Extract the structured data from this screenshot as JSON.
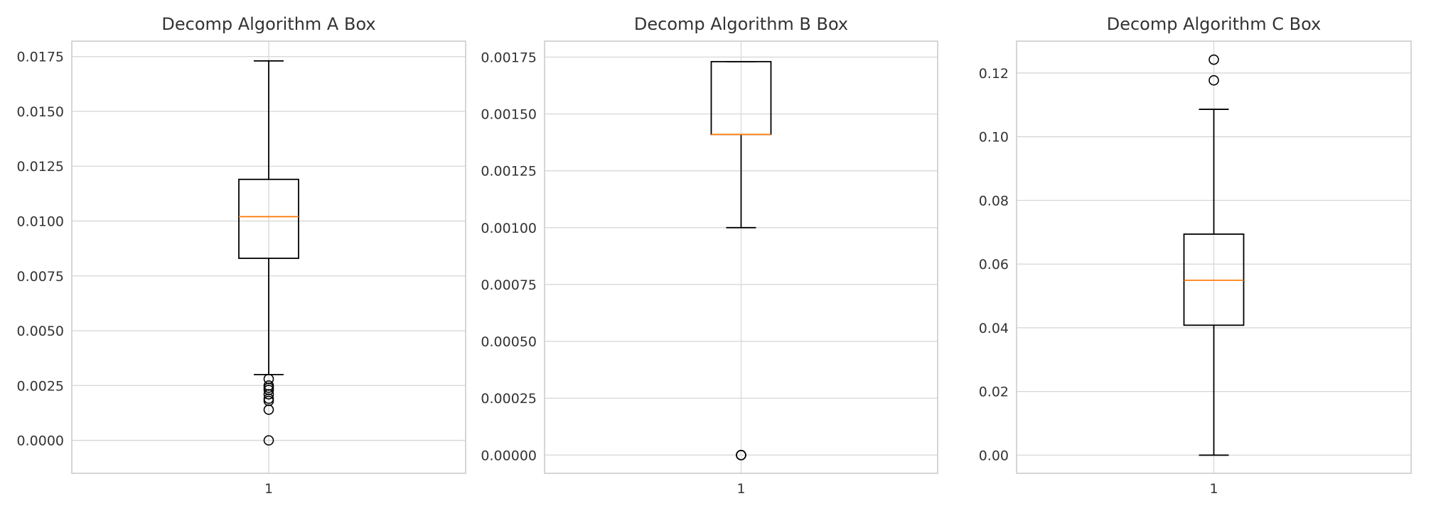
{
  "chart_data": [
    {
      "type": "box",
      "title": "Decomp Algorithm A Box",
      "xlabel": "",
      "ylabel": "",
      "categories": [
        "1"
      ],
      "ylim": [
        -0.0015,
        0.0182
      ],
      "yticks": [
        "0.0000",
        "0.0025",
        "0.0050",
        "0.0075",
        "0.0100",
        "0.0125",
        "0.0150",
        "0.0175"
      ],
      "grid": true,
      "box": {
        "whislo": 0.003,
        "q1": 0.0083,
        "median": 0.0102,
        "q3": 0.0119,
        "whishi": 0.0173,
        "fliers": [
          0.0028,
          0.0025,
          0.0024,
          0.0023,
          0.0021,
          0.0019,
          0.0018,
          0.0014,
          0.0
        ]
      }
    },
    {
      "type": "box",
      "title": "Decomp Algorithm B Box",
      "xlabel": "",
      "ylabel": "",
      "categories": [
        "1"
      ],
      "ylim": [
        -8e-05,
        0.00182
      ],
      "yticks": [
        "0.00000",
        "0.00025",
        "0.00050",
        "0.00075",
        "0.00100",
        "0.00125",
        "0.00150",
        "0.00175"
      ],
      "grid": true,
      "box": {
        "whislo": 0.001,
        "q1": 0.00141,
        "median": 0.00141,
        "q3": 0.00173,
        "whishi": 0.00173,
        "fliers": [
          0.0,
          0.0,
          0.0
        ]
      }
    },
    {
      "type": "box",
      "title": "Decomp Algorithm C Box",
      "xlabel": "",
      "ylabel": "",
      "categories": [
        "1"
      ],
      "ylim": [
        -0.0057,
        0.13
      ],
      "yticks": [
        "0.00",
        "0.02",
        "0.04",
        "0.06",
        "0.08",
        "0.10",
        "0.12"
      ],
      "grid": true,
      "box": {
        "whislo": 0.0,
        "q1": 0.0408,
        "median": 0.0549,
        "q3": 0.0694,
        "whishi": 0.1086,
        "fliers": [
          0.1177,
          0.1242
        ]
      }
    }
  ],
  "colors": {
    "median": "#ff7f0e",
    "box": "#000000",
    "grid": "#d9d9d9",
    "spine": "#cccccc",
    "text": "#333333"
  }
}
